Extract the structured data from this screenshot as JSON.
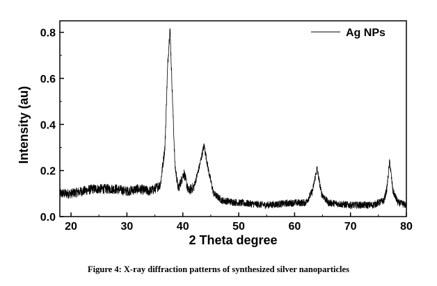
{
  "chart_data": {
    "type": "line",
    "xlabel": "2 Theta degree",
    "ylabel": "Intensity (au)",
    "xlim": [
      18,
      80
    ],
    "ylim": [
      0,
      0.85
    ],
    "xticks": [
      20,
      30,
      40,
      50,
      60,
      70,
      80
    ],
    "xtick_labels": [
      "20",
      "30",
      "40",
      "50",
      "60",
      "70",
      "80"
    ],
    "yticks": [
      0.0,
      0.2,
      0.4,
      0.6,
      0.8
    ],
    "ytick_labels": [
      "0.0",
      "0.2",
      "0.4",
      "0.6",
      "0.8"
    ],
    "legend_position": "top-right",
    "grid": false,
    "series": [
      {
        "name": "Ag NPs",
        "color": "#000000",
        "x": [
          18,
          20,
          22,
          24,
          26,
          28,
          30,
          32,
          34,
          35,
          36,
          36.8,
          37.3,
          37.7,
          38.1,
          38.6,
          39.2,
          40.2,
          41,
          42,
          43,
          43.8,
          44.6,
          45.5,
          47,
          50,
          55,
          60,
          62,
          63.2,
          64,
          64.8,
          66,
          70,
          74,
          76,
          76.5,
          77,
          77.6,
          78.5,
          80
        ],
        "y": [
          0.1,
          0.1,
          0.11,
          0.12,
          0.12,
          0.12,
          0.11,
          0.12,
          0.11,
          0.12,
          0.14,
          0.3,
          0.66,
          0.82,
          0.55,
          0.22,
          0.12,
          0.19,
          0.11,
          0.13,
          0.22,
          0.31,
          0.2,
          0.1,
          0.07,
          0.06,
          0.05,
          0.06,
          0.06,
          0.11,
          0.21,
          0.1,
          0.06,
          0.05,
          0.05,
          0.07,
          0.12,
          0.24,
          0.11,
          0.06,
          0.05
        ]
      }
    ]
  },
  "caption": "Figure 4: X-ray diffraction patterns of synthesized silver nanoparticles"
}
